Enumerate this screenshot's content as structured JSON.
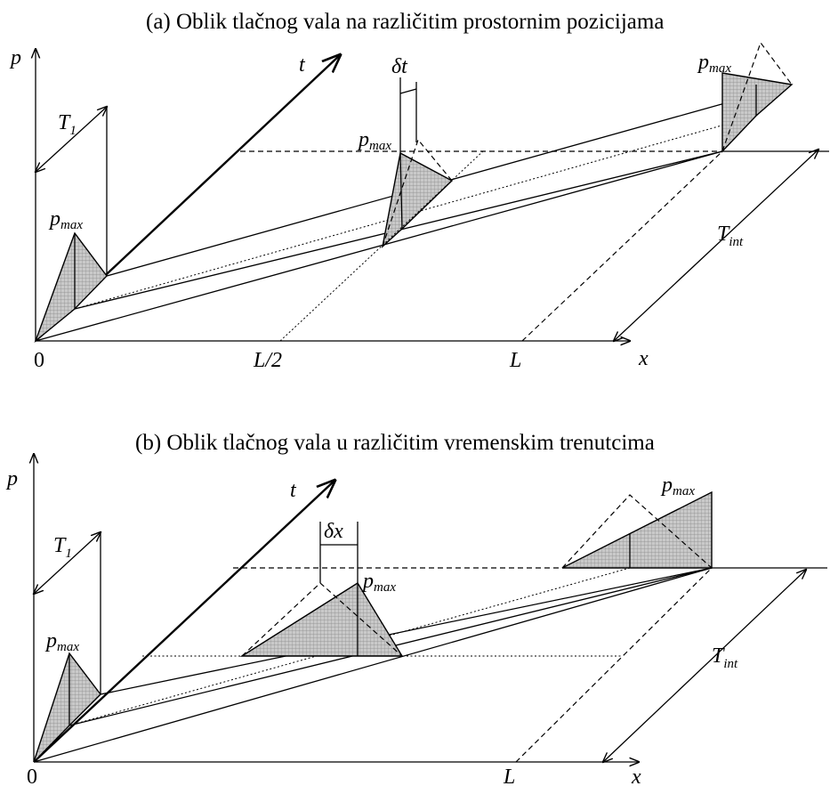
{
  "panel_a": {
    "title": "(a) Oblik tlačnog vala na različitim prostornim pozicijama",
    "axis_p": "p",
    "axis_t": "t",
    "axis_x": "x",
    "origin": "0",
    "half_length": "L/2",
    "length": "L",
    "period_label": "T",
    "period_sub": "1",
    "interval_label": "T",
    "interval_sub": "int",
    "pmax_label": "p",
    "pmax_sub": "max",
    "delta_label": "δt"
  },
  "panel_b": {
    "title": "(b) Oblik tlačnog vala u različitim vremenskim trenutcima",
    "axis_p": "p",
    "axis_t": "t",
    "axis_x": "x",
    "origin": "0",
    "length": "L",
    "period_label": "T",
    "period_sub": "1",
    "interval_label": "T",
    "interval_sub": "int",
    "pmax_label": "p",
    "pmax_sub": "max",
    "delta_label": "δx"
  }
}
